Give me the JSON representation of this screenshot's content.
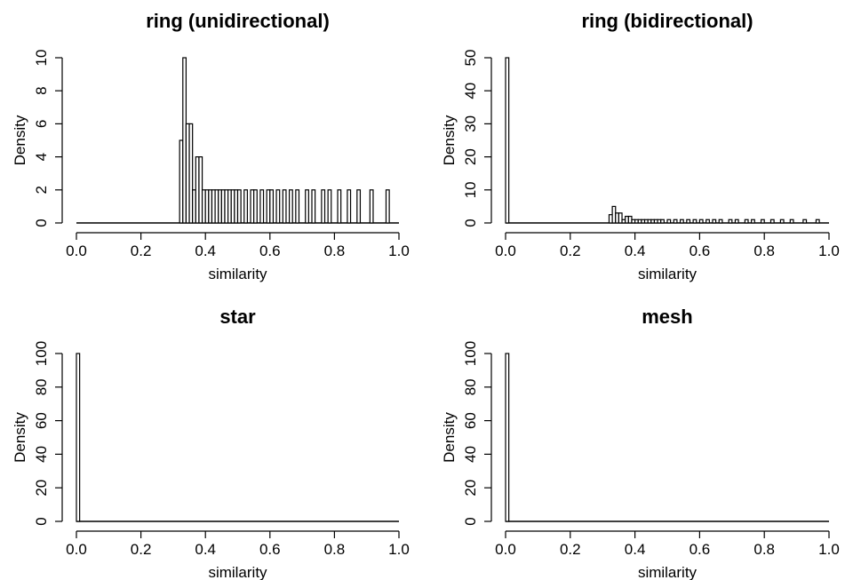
{
  "chart_data": [
    {
      "type": "bar",
      "title": "ring (unidirectional)",
      "xlabel": "similarity",
      "ylabel": "Density",
      "xlim": [
        0,
        1
      ],
      "ylim": [
        0,
        10
      ],
      "xticks": [
        "0.0",
        "0.2",
        "0.4",
        "0.6",
        "0.8",
        "1.0"
      ],
      "yticks": [
        "0",
        "2",
        "4",
        "6",
        "8",
        "10"
      ],
      "bin_width": 0.01,
      "bins": [
        {
          "x": 0.32,
          "y": 5
        },
        {
          "x": 0.33,
          "y": 10
        },
        {
          "x": 0.34,
          "y": 6
        },
        {
          "x": 0.35,
          "y": 6
        },
        {
          "x": 0.36,
          "y": 2
        },
        {
          "x": 0.37,
          "y": 4
        },
        {
          "x": 0.38,
          "y": 4
        },
        {
          "x": 0.39,
          "y": 2
        },
        {
          "x": 0.4,
          "y": 2
        },
        {
          "x": 0.41,
          "y": 2
        },
        {
          "x": 0.42,
          "y": 2
        },
        {
          "x": 0.43,
          "y": 2
        },
        {
          "x": 0.44,
          "y": 2
        },
        {
          "x": 0.45,
          "y": 2
        },
        {
          "x": 0.46,
          "y": 2
        },
        {
          "x": 0.47,
          "y": 2
        },
        {
          "x": 0.48,
          "y": 2
        },
        {
          "x": 0.49,
          "y": 2
        },
        {
          "x": 0.5,
          "y": 2
        },
        {
          "x": 0.52,
          "y": 2
        },
        {
          "x": 0.54,
          "y": 2
        },
        {
          "x": 0.55,
          "y": 2
        },
        {
          "x": 0.57,
          "y": 2
        },
        {
          "x": 0.59,
          "y": 2
        },
        {
          "x": 0.6,
          "y": 2
        },
        {
          "x": 0.62,
          "y": 2
        },
        {
          "x": 0.64,
          "y": 2
        },
        {
          "x": 0.66,
          "y": 2
        },
        {
          "x": 0.68,
          "y": 2
        },
        {
          "x": 0.71,
          "y": 2
        },
        {
          "x": 0.73,
          "y": 2
        },
        {
          "x": 0.76,
          "y": 2
        },
        {
          "x": 0.78,
          "y": 2
        },
        {
          "x": 0.81,
          "y": 2
        },
        {
          "x": 0.84,
          "y": 2
        },
        {
          "x": 0.87,
          "y": 2
        },
        {
          "x": 0.91,
          "y": 2
        },
        {
          "x": 0.96,
          "y": 2
        }
      ]
    },
    {
      "type": "bar",
      "title": "ring (bidirectional)",
      "xlabel": "similarity",
      "ylabel": "Density",
      "xlim": [
        0,
        1
      ],
      "ylim": [
        0,
        50
      ],
      "xticks": [
        "0.0",
        "0.2",
        "0.4",
        "0.6",
        "0.8",
        "1.0"
      ],
      "yticks": [
        "0",
        "10",
        "20",
        "30",
        "40",
        "50"
      ],
      "bin_width": 0.01,
      "bins": [
        {
          "x": 0.0,
          "y": 50
        },
        {
          "x": 0.32,
          "y": 2.5
        },
        {
          "x": 0.33,
          "y": 5
        },
        {
          "x": 0.34,
          "y": 3
        },
        {
          "x": 0.35,
          "y": 3
        },
        {
          "x": 0.36,
          "y": 1
        },
        {
          "x": 0.37,
          "y": 2
        },
        {
          "x": 0.38,
          "y": 2
        },
        {
          "x": 0.39,
          "y": 1
        },
        {
          "x": 0.4,
          "y": 1
        },
        {
          "x": 0.41,
          "y": 1
        },
        {
          "x": 0.42,
          "y": 1
        },
        {
          "x": 0.43,
          "y": 1
        },
        {
          "x": 0.44,
          "y": 1
        },
        {
          "x": 0.45,
          "y": 1
        },
        {
          "x": 0.46,
          "y": 1
        },
        {
          "x": 0.47,
          "y": 1
        },
        {
          "x": 0.48,
          "y": 1
        },
        {
          "x": 0.5,
          "y": 1
        },
        {
          "x": 0.52,
          "y": 1
        },
        {
          "x": 0.54,
          "y": 1
        },
        {
          "x": 0.56,
          "y": 1
        },
        {
          "x": 0.58,
          "y": 1
        },
        {
          "x": 0.6,
          "y": 1
        },
        {
          "x": 0.62,
          "y": 1
        },
        {
          "x": 0.64,
          "y": 1
        },
        {
          "x": 0.66,
          "y": 1
        },
        {
          "x": 0.69,
          "y": 1
        },
        {
          "x": 0.71,
          "y": 1
        },
        {
          "x": 0.74,
          "y": 1
        },
        {
          "x": 0.76,
          "y": 1
        },
        {
          "x": 0.79,
          "y": 1
        },
        {
          "x": 0.82,
          "y": 1
        },
        {
          "x": 0.85,
          "y": 1
        },
        {
          "x": 0.88,
          "y": 1
        },
        {
          "x": 0.92,
          "y": 1
        },
        {
          "x": 0.96,
          "y": 1
        }
      ]
    },
    {
      "type": "bar",
      "title": "star",
      "xlabel": "similarity",
      "ylabel": "Density",
      "xlim": [
        0,
        1
      ],
      "ylim": [
        0,
        100
      ],
      "xticks": [
        "0.0",
        "0.2",
        "0.4",
        "0.6",
        "0.8",
        "1.0"
      ],
      "yticks": [
        "0",
        "20",
        "40",
        "60",
        "80",
        "100"
      ],
      "bin_width": 0.01,
      "bins": [
        {
          "x": 0.0,
          "y": 100
        }
      ]
    },
    {
      "type": "bar",
      "title": "mesh",
      "xlabel": "similarity",
      "ylabel": "Density",
      "xlim": [
        0,
        1
      ],
      "ylim": [
        0,
        100
      ],
      "xticks": [
        "0.0",
        "0.2",
        "0.4",
        "0.6",
        "0.8",
        "1.0"
      ],
      "yticks": [
        "0",
        "20",
        "40",
        "60",
        "80",
        "100"
      ],
      "bin_width": 0.01,
      "bins": [
        {
          "x": 0.0,
          "y": 100
        }
      ]
    }
  ]
}
